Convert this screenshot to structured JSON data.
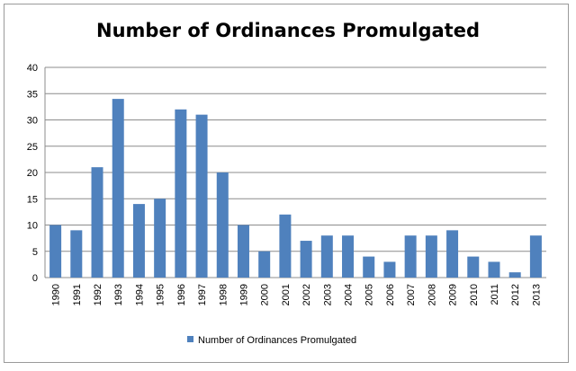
{
  "chart_data": {
    "type": "bar",
    "title": "Number of Ordinances Promulgated",
    "categories": [
      "1990",
      "1991",
      "1992",
      "1993",
      "1994",
      "1995",
      "1996",
      "1997",
      "1998",
      "1999",
      "2000",
      "2001",
      "2002",
      "2003",
      "2004",
      "2005",
      "2006",
      "2007",
      "2008",
      "2009",
      "2010",
      "2011",
      "2012",
      "2013"
    ],
    "series": [
      {
        "name": "Number of Ordinances Promulgated",
        "values": [
          10,
          9,
          21,
          34,
          14,
          15,
          32,
          31,
          20,
          10,
          5,
          12,
          7,
          8,
          8,
          4,
          3,
          8,
          8,
          9,
          4,
          3,
          1,
          8
        ],
        "color": "#4f81bd"
      }
    ],
    "ylim": [
      0,
      40
    ],
    "yticks": [
      0,
      5,
      10,
      15,
      20,
      25,
      30,
      35,
      40
    ],
    "grid": true,
    "legend": "bottom",
    "gridColor": "#8c8c8c",
    "axisColor": "#8c8c8c"
  }
}
